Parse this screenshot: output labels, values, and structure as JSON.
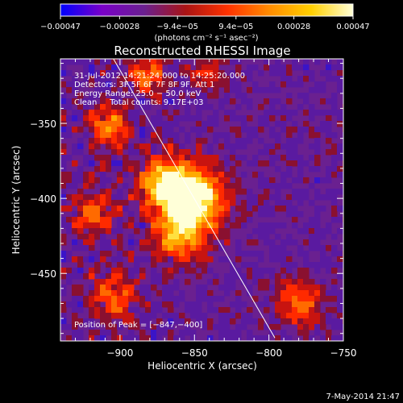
{
  "chart_data": {
    "type": "heatmap",
    "title": "Reconstructed RHESSI Image",
    "xlabel": "Heliocentric X (arcsec)",
    "ylabel": "Heliocentric Y (arcsec)",
    "xlim": [
      -940,
      -750
    ],
    "ylim": [
      -495,
      -307
    ],
    "x_ticks": [
      -900,
      -850,
      -800,
      -750
    ],
    "x_tick_labels": [
      "−900",
      "−850",
      "−800",
      "−750"
    ],
    "y_ticks": [
      -450,
      -400,
      -350
    ],
    "y_tick_labels": [
      "−450",
      "−400",
      "−350"
    ],
    "colorbar": {
      "min": -0.00047,
      "max": 0.00047,
      "ticks": [
        -0.00047,
        -0.00028,
        -9.4e-05,
        9.4e-05,
        0.00028,
        0.00047
      ],
      "tick_labels": [
        "−0.00047",
        "−0.00028",
        "−9.4e−05",
        "9.4e−05",
        "0.00028",
        "0.00047"
      ],
      "label": "(photons cm⁻² s⁻¹ asec⁻²)",
      "colors": [
        "#0000ff",
        "#7a00c8",
        "#6a2090",
        "#aa1414",
        "#ff3200",
        "#ff8c00",
        "#ffd000",
        "#ffffd8"
      ]
    },
    "peak": [
      -847,
      -400
    ],
    "limb_line": [
      [
        -905,
        -306
      ],
      [
        -796,
        -493
      ]
    ],
    "sources": [
      {
        "x": -850,
        "y": -400,
        "sigma": 14,
        "amp": 1.0
      },
      {
        "x": -870,
        "y": -390,
        "sigma": 12,
        "amp": 0.8
      },
      {
        "x": -860,
        "y": -425,
        "sigma": 12,
        "amp": 0.65
      },
      {
        "x": -907,
        "y": -352,
        "sigma": 9,
        "amp": 0.6
      },
      {
        "x": -882,
        "y": -318,
        "sigma": 8,
        "amp": 0.55
      },
      {
        "x": -918,
        "y": -410,
        "sigma": 10,
        "amp": 0.45
      },
      {
        "x": -780,
        "y": -470,
        "sigma": 10,
        "amp": 0.55
      },
      {
        "x": -905,
        "y": -465,
        "sigma": 11,
        "amp": 0.45
      },
      {
        "x": -842,
        "y": -318,
        "sigma": 8,
        "amp": 0.35
      }
    ],
    "legend": "top-left"
  },
  "annotations": {
    "time_range": "31-Jul-2012 14:21:24.000 to 14:25:20.000",
    "detectors": "Detectors: 3F 5F 6F 7F 8F 9F, Att 1",
    "energy_range": "Energy Range: 25.0 − 50.0 keV",
    "method_counts": "Clean     Total counts: 9.17E+03",
    "peak_position": "Position of Peak = [−847,−400]"
  },
  "footer": {
    "timestamp": "7-May-2014 21:47"
  }
}
